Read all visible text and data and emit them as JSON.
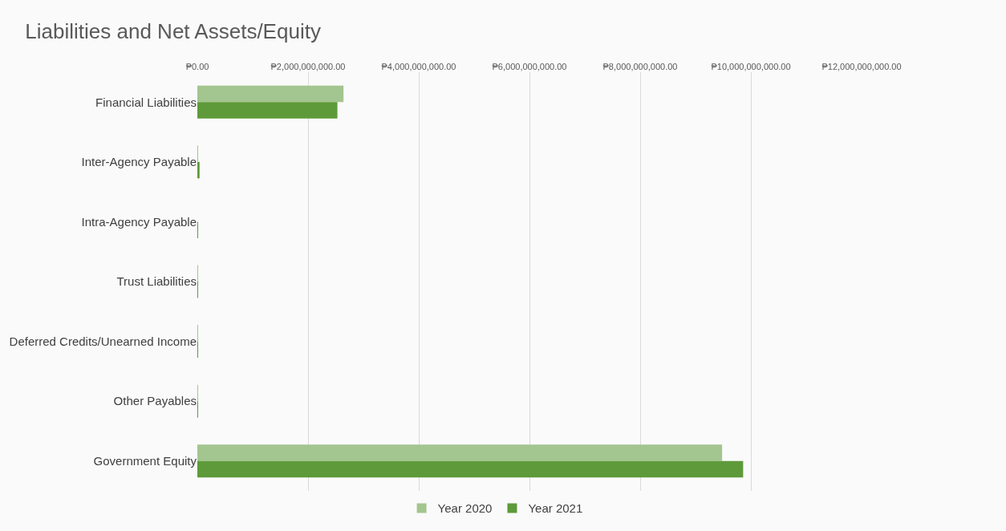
{
  "chart_data": {
    "type": "bar",
    "orientation": "horizontal",
    "title": "Liabilities and Net Assets/Equity",
    "categories": [
      "Financial Liabilities",
      "Inter-Agency Payable",
      "Intra-Agency Payable",
      "Trust Liabilities",
      "Deferred Credits/Unearned Income",
      "Other Payables",
      "Government Equity"
    ],
    "series": [
      {
        "name": "Year 2020",
        "color": "#a3c58f",
        "values": [
          2640000000,
          10000000,
          0,
          10000000,
          10000000,
          10000000,
          9480000000
        ]
      },
      {
        "name": "Year 2021",
        "color": "#5e9a3a",
        "values": [
          2530000000,
          40000000,
          10000000,
          10000000,
          10000000,
          10000000,
          9860000000
        ]
      }
    ],
    "xlim": [
      0,
      12000000000
    ],
    "xticks": [
      {
        "value": 0,
        "label": "₱0.00"
      },
      {
        "value": 2000000000,
        "label": "₱2,000,000,000.00"
      },
      {
        "value": 4000000000,
        "label": "₱4,000,000,000.00"
      },
      {
        "value": 6000000000,
        "label": "₱6,000,000,000.00"
      },
      {
        "value": 8000000000,
        "label": "₱8,000,000,000.00"
      },
      {
        "value": 10000000000,
        "label": "₱10,000,000,000.00"
      },
      {
        "value": 12000000000,
        "label": "₱12,000,000,000.00"
      }
    ],
    "grid": "x",
    "legend": "bottom"
  }
}
